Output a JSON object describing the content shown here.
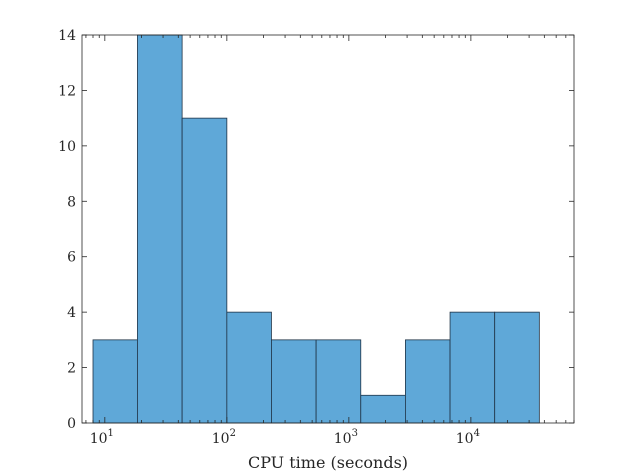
{
  "chart_data": {
    "type": "bar",
    "histogram": true,
    "xscale": "log",
    "xlabel": "CPU time (seconds)",
    "ylabel": "",
    "title": "",
    "xlim": [
      6.5,
      70000
    ],
    "ylim": [
      0,
      14
    ],
    "bin_edges": [
      8,
      18.5,
      43,
      100,
      232,
      539,
      1252,
      2907,
      6750,
      15675,
      36400
    ],
    "counts": [
      3,
      14,
      11,
      4,
      3,
      3,
      1,
      3,
      4,
      4
    ],
    "yticks": [
      0,
      2,
      4,
      6,
      8,
      10,
      12,
      14
    ],
    "xticks": [
      {
        "value": 10,
        "base": "10",
        "exp": "1"
      },
      {
        "value": 100,
        "base": "10",
        "exp": "2"
      },
      {
        "value": 1000,
        "base": "10",
        "exp": "3"
      },
      {
        "value": 10000,
        "base": "10",
        "exp": "4"
      }
    ],
    "grid": false,
    "bar_color": "#5fa8d8",
    "edge_color": "#1f3346"
  }
}
